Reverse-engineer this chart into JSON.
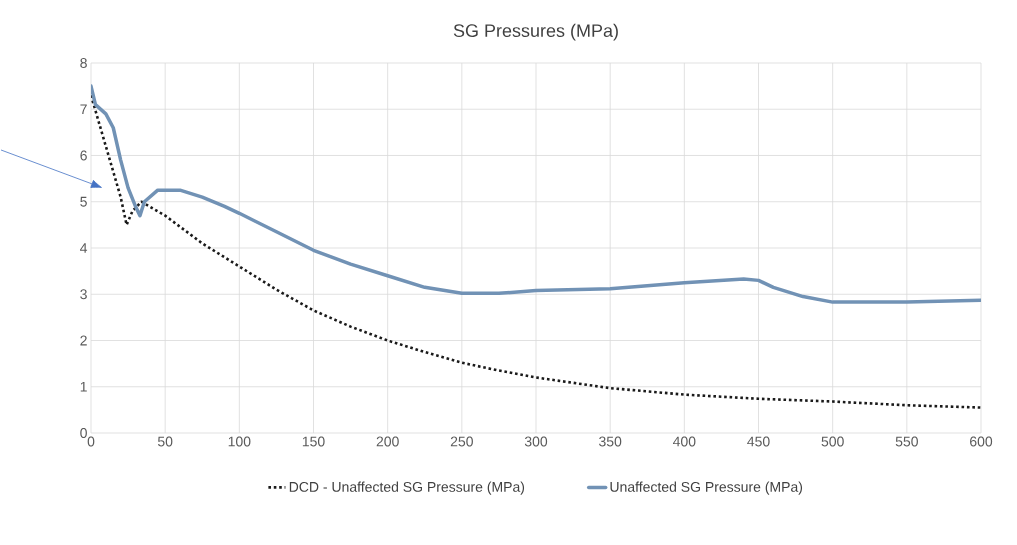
{
  "chart_data": {
    "type": "line",
    "title": "SG Pressures (MPa)",
    "xlim": [
      0,
      600
    ],
    "ylim": [
      0,
      8
    ],
    "xticks": [
      0,
      50,
      100,
      150,
      200,
      250,
      300,
      350,
      400,
      450,
      500,
      550,
      600
    ],
    "yticks": [
      0,
      1,
      2,
      3,
      4,
      5,
      6,
      7,
      8
    ],
    "grid": true,
    "legend": "bottom",
    "marker": "none",
    "series": [
      {
        "name": "DCD - Unaffected SG Pressure (MPa)",
        "color": "#1a1a1a",
        "line_style": "dotted",
        "x": [
          0,
          10,
          20,
          24,
          28,
          34,
          50,
          75,
          100,
          125,
          150,
          175,
          200,
          225,
          250,
          275,
          300,
          350,
          400,
          450,
          500,
          550,
          600
        ],
        "values": [
          7.3,
          6.2,
          5.1,
          4.5,
          4.8,
          5.0,
          4.7,
          4.1,
          3.6,
          3.1,
          2.65,
          2.3,
          2.0,
          1.75,
          1.52,
          1.35,
          1.2,
          0.97,
          0.83,
          0.74,
          0.68,
          0.6,
          0.55
        ]
      },
      {
        "name": "Unaffected SG Pressure (MPa)",
        "color": "#7192b5",
        "line_style": "solid",
        "x": [
          0,
          3,
          10,
          15,
          20,
          25,
          30,
          33,
          36,
          45,
          60,
          75,
          90,
          100,
          125,
          150,
          175,
          200,
          225,
          250,
          275,
          300,
          350,
          400,
          440,
          450,
          460,
          480,
          500,
          550,
          600
        ],
        "values": [
          7.5,
          7.1,
          6.9,
          6.6,
          5.9,
          5.3,
          4.9,
          4.7,
          5.0,
          5.25,
          5.25,
          5.1,
          4.9,
          4.75,
          4.35,
          3.95,
          3.65,
          3.4,
          3.15,
          3.02,
          3.02,
          3.08,
          3.12,
          3.25,
          3.33,
          3.3,
          3.15,
          2.95,
          2.83,
          2.83,
          2.87
        ]
      }
    ]
  }
}
